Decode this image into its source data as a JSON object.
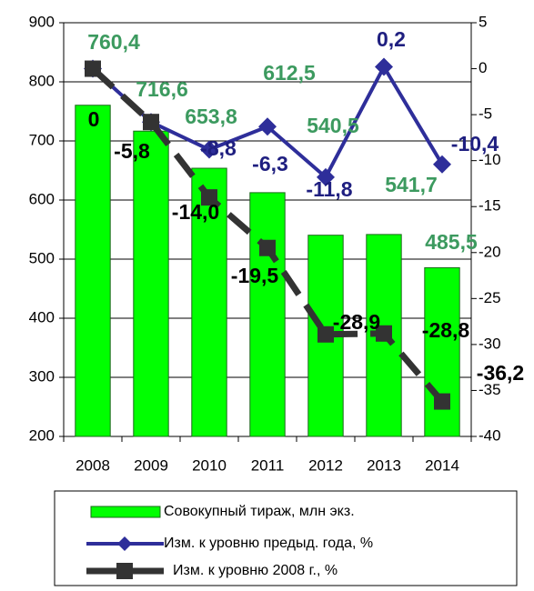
{
  "chart_data": {
    "type": "bar-line",
    "categories": [
      "2008",
      "2009",
      "2010",
      "2011",
      "2012",
      "2013",
      "2014"
    ],
    "series": [
      {
        "name": "Совокупный тираж, млн экз.",
        "type": "bar",
        "axis": "y",
        "color": "#00ff00",
        "values": [
          760.4,
          716.6,
          653.8,
          612.5,
          540.5,
          541.7,
          485.5
        ],
        "value_labels": [
          "760,4",
          "716,6",
          "653,8",
          "612,5",
          "540,5",
          "541,7",
          "485,5"
        ],
        "label_color": "#3c9a5f"
      },
      {
        "name": "Изм. к уровню предыд. года, %",
        "type": "line",
        "axis": "y2",
        "color": "#2e2e9a",
        "values": [
          0,
          -5.8,
          -8.8,
          -6.3,
          -11.8,
          0.2,
          -10.4
        ],
        "value_labels": [
          null,
          null,
          "-8,8",
          "-6,3",
          "-11,8",
          "0,2",
          "-10,4"
        ],
        "label_color": "#1f1f80"
      },
      {
        "name": "Изм. к уровню 2008 г., %",
        "type": "line",
        "axis": "y2",
        "color": "#333333",
        "values": [
          0,
          -5.8,
          -14.0,
          -19.5,
          -28.9,
          -28.8,
          -36.2
        ],
        "value_labels": [
          "0",
          "-5,8",
          "-14,0",
          "-19,5",
          "-28,9",
          "-28,8",
          "-36,2"
        ],
        "label_color": "#000000"
      }
    ],
    "ylim": [
      200,
      900
    ],
    "yticks": [
      200,
      300,
      400,
      500,
      600,
      700,
      800,
      900
    ],
    "y2lim": [
      -40,
      5
    ],
    "y2ticks": [
      -40,
      -35,
      -30,
      -25,
      -20,
      -15,
      -10,
      -5,
      0,
      5
    ],
    "grid": true
  }
}
